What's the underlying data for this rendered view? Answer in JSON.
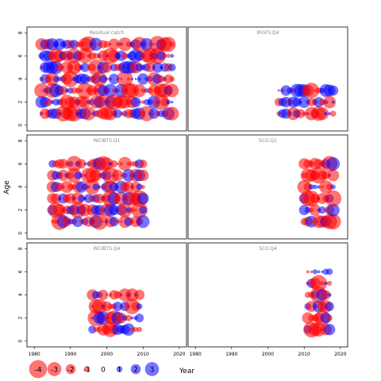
{
  "chart_data": {
    "type": "scatter",
    "title": "",
    "xlabel": "Year",
    "ylabel": "Age",
    "xlim": [
      1978,
      2022
    ],
    "ylim": [
      -0.5,
      8.5
    ],
    "x_ticks": [
      1980,
      1990,
      2000,
      2010,
      2020
    ],
    "y_ticks": [
      0,
      2,
      4,
      6,
      8
    ],
    "colors": {
      "positive": "#0000ff",
      "negative": "#ff0000"
    },
    "legend": {
      "position": "bottom-left",
      "values": [
        -4,
        -3,
        -2,
        -1,
        0,
        1,
        2,
        3
      ],
      "labels": [
        "-4",
        "-3",
        "-2",
        "-1",
        "0",
        "1",
        "2",
        "3"
      ]
    },
    "panels": [
      {
        "name": "Residual catch",
        "years": [
          1982,
          2018
        ],
        "ages": [
          1,
          2,
          3,
          4,
          5,
          6,
          7
        ]
      },
      {
        "name": "IRGFS.Q4",
        "years": [
          2003,
          2018
        ],
        "ages": [
          1,
          2,
          3
        ]
      },
      {
        "name": "WCIBTS.Q1",
        "years": [
          1985,
          2010
        ],
        "ages": [
          1,
          2,
          3,
          4,
          5,
          6
        ]
      },
      {
        "name": "SCO.Q1",
        "years": [
          2010,
          2018
        ],
        "ages": [
          1,
          2,
          3,
          4,
          5,
          6
        ]
      },
      {
        "name": "WCIBTS.Q4",
        "years": [
          1996,
          2009
        ],
        "ages": [
          1,
          2,
          3,
          4
        ]
      },
      {
        "name": "SCO.Q4",
        "years": [
          2011,
          2017
        ],
        "ages": [
          1,
          2,
          3,
          4,
          5,
          6
        ]
      }
    ]
  }
}
